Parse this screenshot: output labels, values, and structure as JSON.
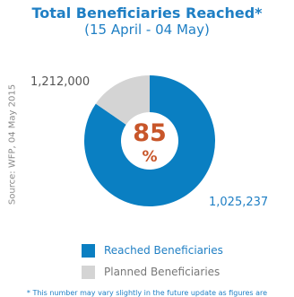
{
  "title": "Total Beneficiaries Reached*",
  "subtitle": "(15 April - 04 May)",
  "source": "Source: WFP, 04 May 2015",
  "center_value": "85",
  "center_unit": "%",
  "footnote": "* This number may vary slightly in the future update as figures are",
  "colors": {
    "reached": "#0a7fc2",
    "planned": "#d4d4d4",
    "title": "#1f7fc4",
    "center": "#c8562a"
  },
  "chart_data": {
    "type": "pie",
    "title": "Total Beneficiaries Reached*",
    "subtitle": "(15 April - 04 May)",
    "slices": [
      {
        "name": "Reached Beneficiaries",
        "value": 1025237,
        "label": "1,025,237",
        "color": "#0a7fc2"
      },
      {
        "name": "Planned Beneficiaries",
        "value": 186763,
        "label": "1,212,000",
        "color": "#d4d4d4"
      }
    ],
    "legend": {
      "position": "bottom"
    }
  }
}
